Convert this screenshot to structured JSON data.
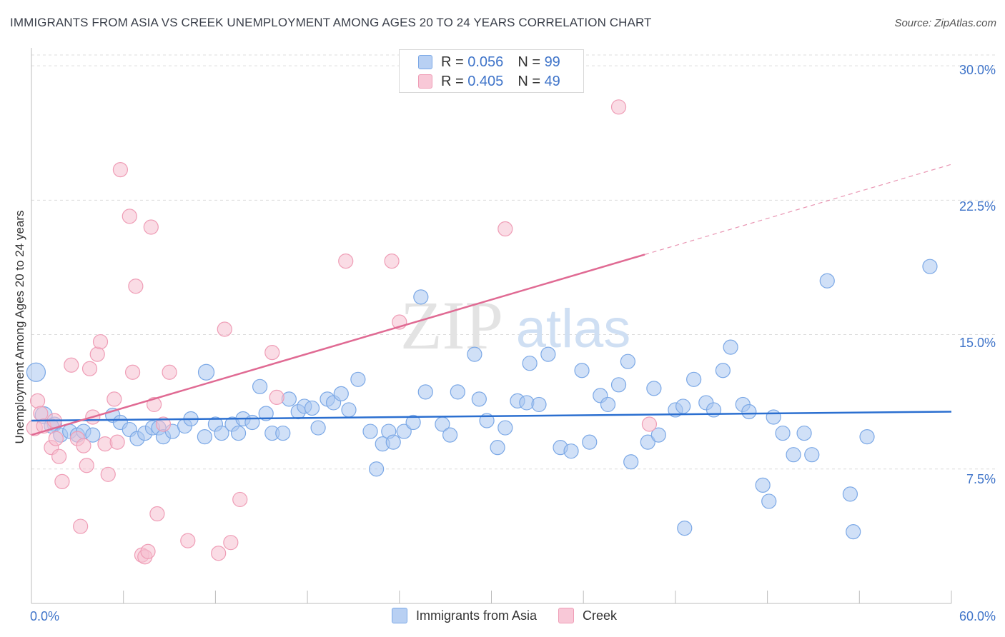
{
  "title": "IMMIGRANTS FROM ASIA VS CREEK UNEMPLOYMENT AMONG AGES 20 TO 24 YEARS CORRELATION CHART",
  "source": "Source: ZipAtlas.com",
  "watermark": {
    "zip": "ZIP",
    "atlas": "atlas"
  },
  "legend": {
    "rows": [
      {
        "r_label": "R = ",
        "r_value": "0.056",
        "n_label": "N = ",
        "n_value": "99"
      },
      {
        "r_label": "R = ",
        "r_value": "0.405",
        "n_label": "N = ",
        "n_value": "49"
      }
    ]
  },
  "chart_data": {
    "type": "scatter",
    "title": "IMMIGRANTS FROM ASIA VS CREEK UNEMPLOYMENT AMONG AGES 20 TO 24 YEARS CORRELATION CHART",
    "xlabel": "",
    "ylabel": "Unemployment Among Ages 20 to 24 years",
    "xlim": [
      0,
      60
    ],
    "ylim": [
      0,
      31
    ],
    "x_tick_labels": {
      "min": "0.0%",
      "max": "60.0%"
    },
    "y_ticks": [
      7.5,
      15.0,
      22.5,
      30.0
    ],
    "y_tick_labels": [
      "7.5%",
      "15.0%",
      "22.5%",
      "30.0%"
    ],
    "series": [
      {
        "name": "Immigrants from Asia",
        "color": "#7ba8e6",
        "fill": "#a9c6f0",
        "line_color": "#2b6fd0",
        "trend": {
          "x0": 0,
          "y0": 10.2,
          "x1": 60,
          "y1": 10.7,
          "dashed_from": null
        },
        "points": [
          [
            0.3,
            12.9,
            13
          ],
          [
            0.8,
            10.5,
            12
          ],
          [
            1.5,
            10.0,
            10
          ],
          [
            1.3,
            9.9,
            10
          ],
          [
            1.9,
            9.4,
            10
          ],
          [
            2.5,
            9.6,
            10
          ],
          [
            3.0,
            9.4,
            10
          ],
          [
            3.4,
            9.6,
            10
          ],
          [
            4.0,
            9.4,
            10
          ],
          [
            5.3,
            10.5,
            10
          ],
          [
            5.8,
            10.1,
            10
          ],
          [
            6.4,
            9.7,
            10
          ],
          [
            6.9,
            9.2,
            10
          ],
          [
            7.4,
            9.5,
            10
          ],
          [
            7.9,
            9.8,
            10
          ],
          [
            8.3,
            9.8,
            10
          ],
          [
            8.6,
            9.3,
            10
          ],
          [
            9.2,
            9.6,
            10
          ],
          [
            10.0,
            9.9,
            10
          ],
          [
            10.4,
            10.3,
            10
          ],
          [
            11.4,
            12.9,
            11
          ],
          [
            11.3,
            9.3,
            10
          ],
          [
            12.0,
            10.0,
            10
          ],
          [
            12.4,
            9.5,
            10
          ],
          [
            13.1,
            10.0,
            10
          ],
          [
            13.5,
            9.5,
            10
          ],
          [
            13.8,
            10.3,
            10
          ],
          [
            14.4,
            10.1,
            10
          ],
          [
            14.9,
            12.1,
            10
          ],
          [
            15.3,
            10.6,
            10
          ],
          [
            15.7,
            9.5,
            10
          ],
          [
            16.4,
            9.5,
            10
          ],
          [
            16.8,
            11.4,
            10
          ],
          [
            17.4,
            10.7,
            10
          ],
          [
            17.8,
            11.0,
            10
          ],
          [
            18.3,
            10.9,
            10
          ],
          [
            18.7,
            9.8,
            10
          ],
          [
            19.3,
            11.4,
            10
          ],
          [
            19.7,
            11.2,
            10
          ],
          [
            20.2,
            11.7,
            10
          ],
          [
            20.7,
            10.8,
            10
          ],
          [
            21.3,
            12.5,
            10
          ],
          [
            22.1,
            9.6,
            10
          ],
          [
            22.5,
            7.5,
            10
          ],
          [
            22.9,
            8.9,
            10
          ],
          [
            23.3,
            9.6,
            10
          ],
          [
            23.6,
            9.0,
            10
          ],
          [
            24.3,
            9.6,
            10
          ],
          [
            24.9,
            10.1,
            10
          ],
          [
            25.4,
            17.1,
            10
          ],
          [
            25.7,
            11.8,
            10
          ],
          [
            26.8,
            10.0,
            10
          ],
          [
            27.3,
            9.4,
            10
          ],
          [
            27.8,
            11.8,
            10
          ],
          [
            28.9,
            13.9,
            10
          ],
          [
            29.2,
            11.4,
            10
          ],
          [
            29.7,
            10.2,
            10
          ],
          [
            30.4,
            8.7,
            10
          ],
          [
            30.9,
            9.8,
            10
          ],
          [
            31.7,
            11.3,
            10
          ],
          [
            32.5,
            13.4,
            10
          ],
          [
            32.3,
            11.2,
            10
          ],
          [
            33.1,
            11.1,
            10
          ],
          [
            33.7,
            13.9,
            10
          ],
          [
            34.5,
            8.7,
            10
          ],
          [
            35.2,
            8.5,
            10
          ],
          [
            35.9,
            13.0,
            10
          ],
          [
            36.4,
            9.0,
            10
          ],
          [
            37.1,
            11.6,
            10
          ],
          [
            37.6,
            11.1,
            10
          ],
          [
            38.3,
            12.2,
            10
          ],
          [
            38.9,
            13.5,
            10
          ],
          [
            39.1,
            7.9,
            10
          ],
          [
            40.2,
            9.0,
            10
          ],
          [
            40.6,
            12.0,
            10
          ],
          [
            40.9,
            9.4,
            10
          ],
          [
            42.0,
            10.8,
            10
          ],
          [
            42.5,
            11.0,
            10
          ],
          [
            42.6,
            4.2,
            10
          ],
          [
            43.2,
            12.5,
            10
          ],
          [
            44.0,
            11.2,
            10
          ],
          [
            44.5,
            10.8,
            10
          ],
          [
            45.1,
            13.0,
            10
          ],
          [
            45.6,
            14.3,
            10
          ],
          [
            46.4,
            11.1,
            10
          ],
          [
            46.8,
            10.7,
            10
          ],
          [
            47.7,
            6.6,
            10
          ],
          [
            48.1,
            5.7,
            10
          ],
          [
            48.4,
            10.4,
            10
          ],
          [
            49.0,
            9.5,
            10
          ],
          [
            49.7,
            8.3,
            10
          ],
          [
            50.4,
            9.5,
            10
          ],
          [
            50.9,
            8.3,
            10
          ],
          [
            51.9,
            18.0,
            10
          ],
          [
            53.4,
            6.1,
            10
          ],
          [
            53.6,
            4.0,
            10
          ],
          [
            54.5,
            9.3,
            10
          ],
          [
            58.6,
            18.8,
            10
          ]
        ]
      },
      {
        "name": "Creek",
        "color": "#ef9db6",
        "fill": "#f6bfd0",
        "line_color": "#e06a93",
        "trend": {
          "x0": 0,
          "y0": 9.4,
          "x1": 60,
          "y1": 24.5,
          "dashed_from": 40
        },
        "points": [
          [
            0.2,
            9.8,
            11
          ],
          [
            0.4,
            11.3,
            10
          ],
          [
            0.6,
            10.6,
            10
          ],
          [
            0.8,
            9.9,
            10
          ],
          [
            1.3,
            8.7,
            10
          ],
          [
            1.5,
            10.2,
            10
          ],
          [
            1.6,
            9.2,
            10
          ],
          [
            1.8,
            8.2,
            10
          ],
          [
            2.0,
            6.8,
            10
          ],
          [
            2.6,
            13.3,
            10
          ],
          [
            3.0,
            9.2,
            10
          ],
          [
            3.2,
            4.3,
            10
          ],
          [
            3.4,
            8.8,
            10
          ],
          [
            3.6,
            7.7,
            10
          ],
          [
            3.8,
            13.1,
            10
          ],
          [
            4.0,
            10.4,
            10
          ],
          [
            4.3,
            13.9,
            10
          ],
          [
            4.5,
            14.6,
            10
          ],
          [
            4.8,
            8.9,
            10
          ],
          [
            5.0,
            7.2,
            10
          ],
          [
            5.4,
            11.4,
            10
          ],
          [
            5.6,
            9.0,
            10
          ],
          [
            5.8,
            24.2,
            10
          ],
          [
            6.4,
            21.6,
            10
          ],
          [
            6.6,
            12.9,
            10
          ],
          [
            6.8,
            17.7,
            10
          ],
          [
            7.2,
            2.7,
            10
          ],
          [
            7.4,
            2.6,
            10
          ],
          [
            7.6,
            2.9,
            10
          ],
          [
            7.8,
            21.0,
            10
          ],
          [
            8.0,
            11.1,
            10
          ],
          [
            8.2,
            5.0,
            10
          ],
          [
            8.6,
            10.0,
            10
          ],
          [
            9.0,
            12.9,
            10
          ],
          [
            10.2,
            3.5,
            10
          ],
          [
            12.2,
            2.8,
            10
          ],
          [
            12.6,
            15.3,
            10
          ],
          [
            13.0,
            3.4,
            10
          ],
          [
            13.6,
            5.8,
            10
          ],
          [
            15.7,
            14.0,
            10
          ],
          [
            16.0,
            11.5,
            10
          ],
          [
            20.5,
            19.1,
            10
          ],
          [
            23.5,
            19.1,
            10
          ],
          [
            24.0,
            15.7,
            10
          ],
          [
            30.9,
            20.9,
            10
          ],
          [
            38.3,
            27.7,
            10
          ],
          [
            40.3,
            10.0,
            10
          ]
        ]
      }
    ]
  },
  "bottom_legend": {
    "items": [
      "Immigrants from Asia",
      "Creek"
    ]
  }
}
